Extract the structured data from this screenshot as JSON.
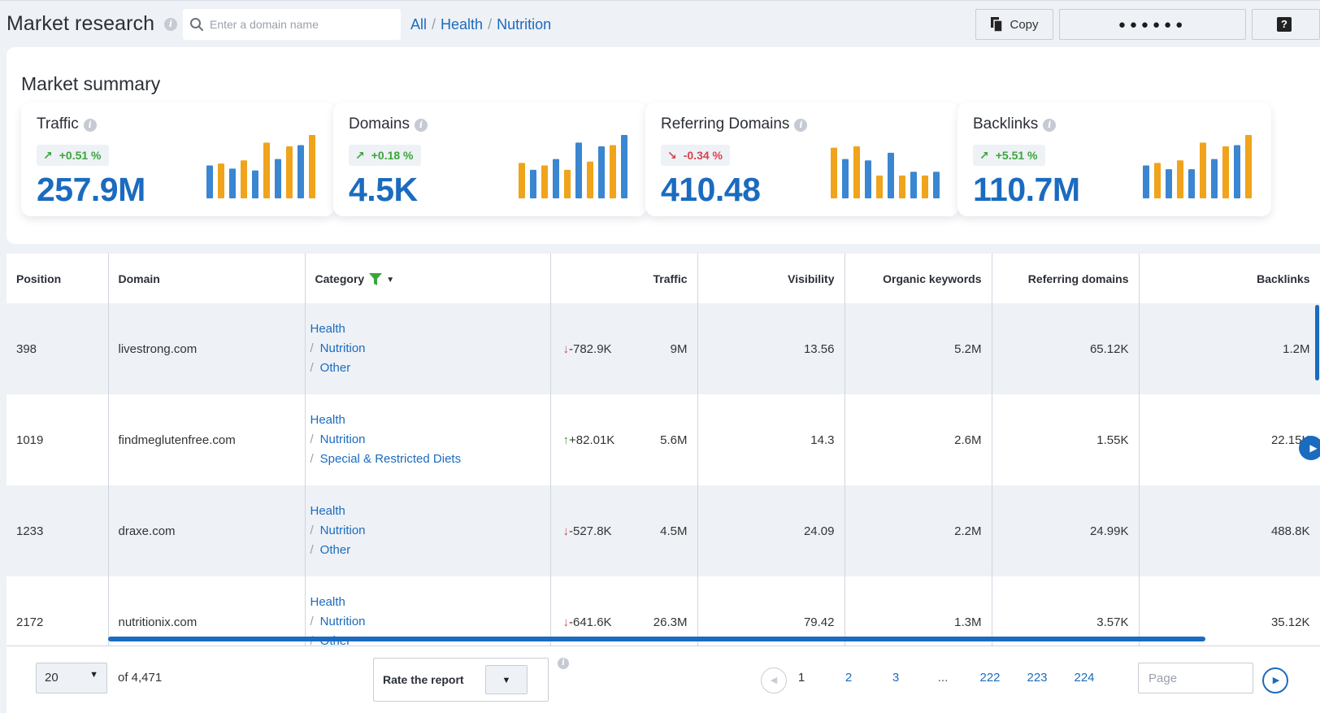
{
  "header": {
    "title": "Market research",
    "search_placeholder": "Enter a domain name",
    "breadcrumb": [
      "All",
      "Health",
      "Nutrition"
    ],
    "copy_label": "Copy",
    "masked_label": "●●●●●●",
    "help_label": "?"
  },
  "summary": {
    "title": "Market summary",
    "cards": [
      {
        "label": "Traffic",
        "change": "+0.51 %",
        "direction": "up",
        "value": "257.9M",
        "spark": [
          0.52,
          0.55,
          0.47,
          0.6,
          0.44,
          0.88,
          0.62,
          0.82,
          0.84,
          1.0
        ]
      },
      {
        "label": "Domains",
        "change": "+0.18 %",
        "direction": "up",
        "value": "4.5K",
        "spark": [
          0.48,
          0.56,
          0.45,
          0.52,
          0.62,
          0.45,
          0.88,
          0.58,
          0.82,
          0.84,
          1.0
        ]
      },
      {
        "label": "Referring Domains",
        "change": "-0.34 %",
        "direction": "down",
        "value": "410.48",
        "spark": [
          0.72,
          0.8,
          0.62,
          0.82,
          0.6,
          0.36,
          0.72,
          0.36,
          0.42,
          0.36,
          0.42
        ]
      },
      {
        "label": "Backlinks",
        "change": "+5.51 %",
        "direction": "up",
        "value": "110.7M",
        "spark": [
          0.52,
          0.56,
          0.46,
          0.6,
          0.46,
          0.88,
          0.62,
          0.82,
          0.84,
          1.0
        ]
      }
    ],
    "spark_colors": [
      "#3b86d1",
      "#f0a41b"
    ]
  },
  "table": {
    "columns": [
      "Position",
      "Domain",
      "Category",
      "Traffic",
      "Visibility",
      "Organic keywords",
      "Referring domains",
      "Backlinks"
    ],
    "rows": [
      {
        "position": "398",
        "domain": "livestrong.com",
        "category": [
          "Health",
          "Nutrition",
          "Other"
        ],
        "delta_dir": "down",
        "delta": "-782.9K",
        "traffic": "9M",
        "visibility": "13.56",
        "organic": "5.2M",
        "refdomains": "65.12K",
        "backlinks": "1.2M"
      },
      {
        "position": "1019",
        "domain": "findmeglutenfree.com",
        "category": [
          "Health",
          "Nutrition",
          "Special & Restricted Diets"
        ],
        "delta_dir": "up",
        "delta": "+82.01K",
        "traffic": "5.6M",
        "visibility": "14.3",
        "organic": "2.6M",
        "refdomains": "1.55K",
        "backlinks": "22.15K"
      },
      {
        "position": "1233",
        "domain": "draxe.com",
        "category": [
          "Health",
          "Nutrition",
          "Other"
        ],
        "delta_dir": "down",
        "delta": "-527.8K",
        "traffic": "4.5M",
        "visibility": "24.09",
        "organic": "2.2M",
        "refdomains": "24.99K",
        "backlinks": "488.8K"
      },
      {
        "position": "2172",
        "domain": "nutritionix.com",
        "category": [
          "Health",
          "Nutrition",
          "Other"
        ],
        "delta_dir": "down",
        "delta": "-641.6K",
        "traffic": "26.3M",
        "visibility": "79.42",
        "organic": "1.3M",
        "refdomains": "3.57K",
        "backlinks": "35.12K"
      }
    ]
  },
  "footer": {
    "per_page": "20",
    "of_total": "of 4,471",
    "rate_label": "Rate the report",
    "pages": [
      "1",
      "2",
      "3",
      "...",
      "222",
      "223",
      "224"
    ],
    "current_page": "1",
    "page_placeholder": "Page"
  }
}
